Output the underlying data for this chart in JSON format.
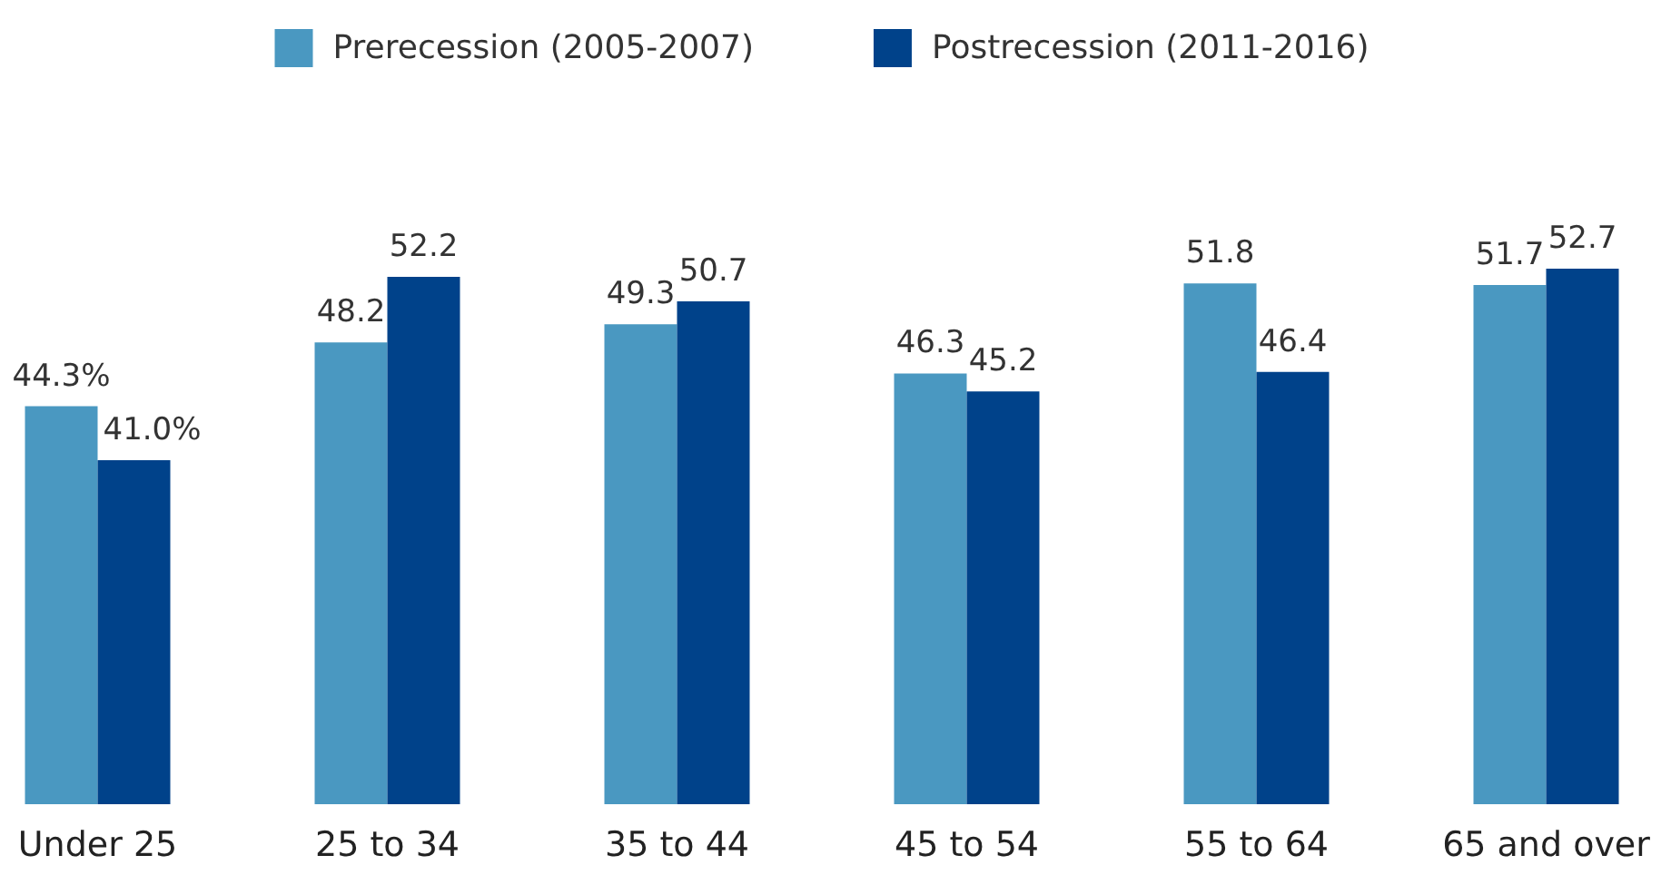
{
  "chart_data": {
    "type": "bar",
    "categories": [
      "Under 25",
      "25 to 34",
      "35 to 44",
      "45 to 54",
      "55 to 64",
      "65 and over"
    ],
    "series": [
      {
        "name": "Prerecession (2005-2007)",
        "color": "#4a98c1",
        "values": [
          44.3,
          48.2,
          49.3,
          46.3,
          51.8,
          51.7
        ],
        "value_labels": [
          "44.3%",
          "48.2",
          "49.3",
          "46.3",
          "51.8",
          "51.7"
        ]
      },
      {
        "name": "Postrecession (2011-2016)",
        "color": "#00428a",
        "values": [
          41.0,
          52.2,
          50.7,
          45.2,
          46.4,
          52.7
        ],
        "value_labels": [
          "41.0%",
          "52.2",
          "50.7",
          "45.2",
          "46.4",
          "52.7"
        ]
      }
    ],
    "ylim": [
      20,
      52.7
    ],
    "legend": "top",
    "tick_labels": "x"
  }
}
